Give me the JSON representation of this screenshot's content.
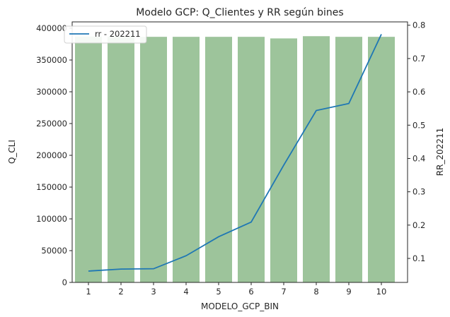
{
  "chart_data": {
    "type": "bar",
    "title": "Modelo GCP: Q_Clientes y RR según bines",
    "xlabel": "MODELO_GCP_BIN",
    "ylabel": "Q_CLI",
    "ylabel_right": "RR_202211",
    "categories": [
      "1",
      "2",
      "3",
      "4",
      "5",
      "6",
      "7",
      "8",
      "9",
      "10"
    ],
    "ylim": [
      0,
      410000
    ],
    "yticks": [
      "0",
      "50000",
      "100000",
      "150000",
      "200000",
      "250000",
      "300000",
      "350000",
      "400000"
    ],
    "ylim_right": [
      0.028,
      0.81
    ],
    "yticks_right": [
      "0.1",
      "0.2",
      "0.3",
      "0.4",
      "0.5",
      "0.6",
      "0.7",
      "0.8"
    ],
    "series": [
      {
        "kind": "bar",
        "values": [
          387000,
          387000,
          386500,
          386500,
          386500,
          386500,
          384000,
          387500,
          386500,
          386500
        ],
        "color": "#9dc49b",
        "axis": "left"
      },
      {
        "name": "rr - 202211",
        "kind": "line",
        "values": [
          0.062,
          0.068,
          0.069,
          0.108,
          0.165,
          0.209,
          0.38,
          0.544,
          0.565,
          0.773
        ],
        "color": "#1f77b4",
        "axis": "right"
      }
    ],
    "legend": {
      "position": "top-left",
      "entries": [
        "rr - 202211"
      ]
    },
    "grid": false
  }
}
